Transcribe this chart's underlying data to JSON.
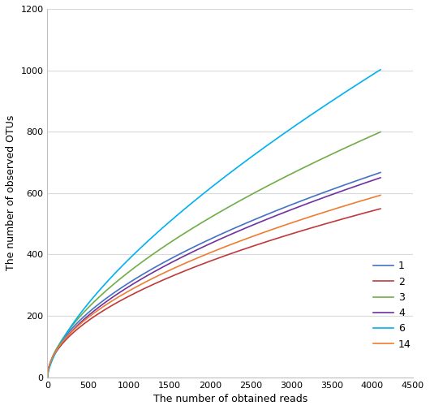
{
  "title": "",
  "xlabel": "The number of obtained reads",
  "ylabel": "The number of observed OTUs",
  "xlim": [
    0,
    4500
  ],
  "ylim": [
    0,
    1200
  ],
  "xticks": [
    0,
    500,
    1000,
    1500,
    2000,
    2500,
    3000,
    3500,
    4000,
    4500
  ],
  "yticks": [
    0,
    200,
    400,
    600,
    800,
    1000,
    1200
  ],
  "series": [
    {
      "label": "1",
      "color": "#4472C4",
      "max_reads": 4100,
      "max_otus": 667,
      "k": 0.55
    },
    {
      "label": "2",
      "color": "#C0393B",
      "max_reads": 4100,
      "max_otus": 549,
      "k": 0.52
    },
    {
      "label": "3",
      "color": "#70AD47",
      "max_reads": 4100,
      "max_otus": 799,
      "k": 0.6
    },
    {
      "label": "4",
      "color": "#7030A0",
      "max_reads": 4100,
      "max_otus": 650,
      "k": 0.56
    },
    {
      "label": "6",
      "color": "#00B0F0",
      "max_reads": 4100,
      "max_otus": 1002,
      "k": 0.68
    },
    {
      "label": "14",
      "color": "#ED7D31",
      "max_reads": 4100,
      "max_otus": 593,
      "k": 0.53
    }
  ],
  "background_color": "#ffffff",
  "grid_color": "#d9d9d9"
}
